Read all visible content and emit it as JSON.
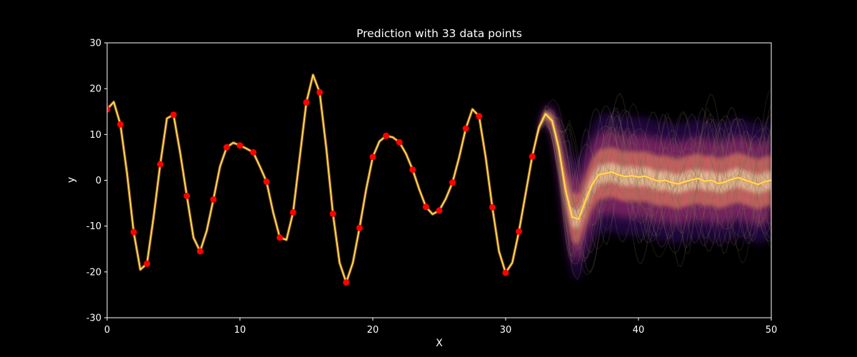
{
  "chart_data": {
    "type": "line",
    "title": "Prediction with 33 data points",
    "xlabel": "X",
    "ylabel": "y",
    "xlim": [
      0,
      50
    ],
    "ylim": [
      -30,
      30
    ],
    "xticks": [
      0,
      10,
      20,
      30,
      40,
      50
    ],
    "yticks": [
      -30,
      -20,
      -10,
      0,
      10,
      20,
      30
    ],
    "grid": false,
    "background": "#000000",
    "colors": {
      "mean_line": "#ffe066",
      "points": "#ff0000",
      "band_outer": "#3b0f70",
      "band_mid": "#b63679",
      "band_inner": "#fb8861",
      "band_core": "#fcfdbf"
    },
    "series": [
      {
        "type": "scatter",
        "x": [
          0,
          1,
          2,
          3,
          4,
          5,
          6,
          7,
          8,
          9,
          10,
          11,
          12,
          13,
          14,
          15,
          16,
          17,
          18,
          19,
          20,
          21,
          22,
          23,
          24,
          25,
          26,
          27,
          28,
          29,
          30,
          31,
          32
        ],
        "values": [
          15.5,
          12.2,
          -11.3,
          -18.2,
          3.5,
          14.3,
          -3.4,
          -15.5,
          -4.2,
          7.2,
          7.6,
          6.1,
          -0.3,
          -12.5,
          -7.0,
          17.0,
          19.2,
          -7.3,
          -22.3,
          -10.4,
          5.1,
          9.7,
          8.3,
          2.3,
          -5.8,
          -6.6,
          -0.5,
          11.3,
          14.0,
          -5.9,
          -20.2,
          -11.2,
          5.2
        ]
      },
      {
        "type": "line",
        "x": [
          0,
          0.5,
          1,
          1.5,
          2,
          2.5,
          3,
          3.5,
          4,
          4.5,
          5,
          5.5,
          6,
          6.5,
          7,
          7.5,
          8,
          8.5,
          9,
          9.5,
          10,
          10.5,
          11,
          11.5,
          12,
          12.5,
          13,
          13.5,
          14,
          14.5,
          15,
          15.5,
          16,
          16.5,
          17,
          17.5,
          18,
          18.5,
          19,
          19.5,
          20,
          20.5,
          21,
          21.5,
          22,
          22.5,
          23,
          23.5,
          24,
          24.5,
          25,
          25.5,
          26,
          26.5,
          27,
          27.5,
          28,
          28.5,
          29,
          29.5,
          30,
          30.5,
          31,
          31.5,
          32,
          32.5,
          33,
          33.5,
          34,
          34.5,
          35,
          35.5,
          36,
          36.5,
          37,
          37.5,
          38,
          38.5,
          39,
          39.5,
          40,
          40.5,
          41,
          41.5,
          42,
          42.5,
          43,
          43.5,
          44,
          44.5,
          45,
          45.5,
          46,
          46.5,
          47,
          47.5,
          48,
          48.5,
          49,
          49.5,
          50
        ],
        "values": [
          15.5,
          17.1,
          12.2,
          1.5,
          -11.3,
          -19.5,
          -18.2,
          -8.0,
          3.5,
          13.5,
          14.3,
          6.0,
          -3.4,
          -12.5,
          -15.5,
          -11.0,
          -4.2,
          3.0,
          7.2,
          8.2,
          7.6,
          6.9,
          6.1,
          3.0,
          -0.3,
          -7.0,
          -12.5,
          -13.0,
          -7.0,
          5.0,
          17.0,
          23.0,
          19.2,
          7.0,
          -7.3,
          -18.0,
          -22.3,
          -18.0,
          -10.4,
          -2.0,
          5.1,
          8.5,
          9.7,
          9.4,
          8.3,
          5.8,
          2.3,
          -2.0,
          -5.8,
          -7.4,
          -6.6,
          -4.0,
          -0.5,
          5.0,
          11.3,
          15.5,
          14.0,
          5.0,
          -5.9,
          -15.5,
          -20.2,
          -18.0,
          -11.2,
          -3.0,
          5.2,
          11.5,
          14.5,
          13.0,
          7.0,
          -2.0,
          -8.0,
          -8.5,
          -4.5,
          -1.0,
          1.2,
          1.5,
          1.8,
          1.2,
          0.8,
          1.0,
          0.7,
          0.9,
          0.3,
          -0.2,
          0.0,
          -0.5,
          -0.8,
          -0.3,
          0.1,
          0.4,
          -0.2,
          0.0,
          -0.7,
          -0.4,
          0.2,
          0.6,
          0.1,
          -0.4,
          -0.9,
          -0.3,
          0.0
        ]
      }
    ]
  }
}
